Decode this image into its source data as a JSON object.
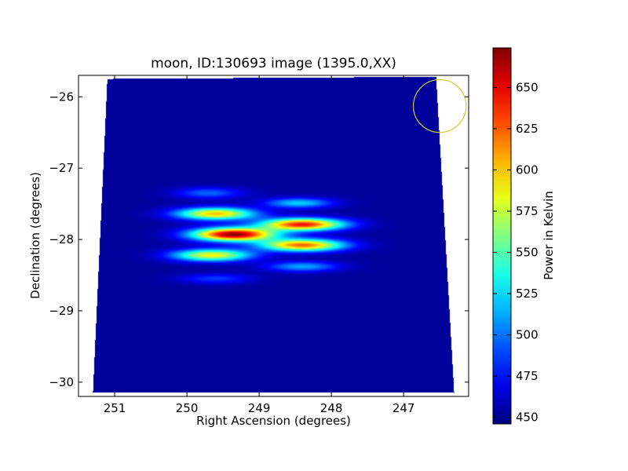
{
  "chart_data": {
    "type": "heatmap",
    "title": "moon, ID:130693 image (1395.0,XX)",
    "xlabel": "Right Ascension (degrees)",
    "ylabel": "Declination (degrees)",
    "xlim": [
      251.5,
      246.1
    ],
    "ylim": [
      -30.2,
      -25.7
    ],
    "x_ticks": [
      251,
      250,
      249,
      248,
      247
    ],
    "x_tick_labels": [
      "251",
      "250",
      "249",
      "248",
      "247"
    ],
    "y_ticks": [
      -26,
      -27,
      -28,
      -29,
      -30
    ],
    "y_tick_labels": [
      "−26",
      "−27",
      "−28",
      "−29",
      "−30"
    ],
    "colorbar": {
      "label": "Power in Kelvin",
      "range": [
        446,
        674
      ],
      "ticks": [
        450,
        475,
        500,
        525,
        550,
        575,
        600,
        625,
        650
      ],
      "tick_labels": [
        "450",
        "475",
        "500",
        "525",
        "550",
        "575",
        "600",
        "625",
        "650"
      ],
      "colormap": "jet"
    },
    "background_value": 452,
    "beam_circle": {
      "ra": 246.5,
      "dec": -26.13,
      "radius_deg": 0.37,
      "color": "#cccc33"
    },
    "blobs": [
      {
        "ra": 249.7,
        "dec": -27.35,
        "amp": 45,
        "sx": 0.33,
        "sy": 0.055
      },
      {
        "ra": 249.6,
        "dec": -27.64,
        "amp": 150,
        "sx": 0.38,
        "sy": 0.06
      },
      {
        "ra": 249.35,
        "dec": -27.93,
        "amp": 220,
        "sx": 0.4,
        "sy": 0.065
      },
      {
        "ra": 249.65,
        "dec": -28.22,
        "amp": 135,
        "sx": 0.38,
        "sy": 0.06
      },
      {
        "ra": 249.6,
        "dec": -28.55,
        "amp": 35,
        "sx": 0.35,
        "sy": 0.05
      },
      {
        "ra": 248.45,
        "dec": -27.49,
        "amp": 70,
        "sx": 0.33,
        "sy": 0.05
      },
      {
        "ra": 248.4,
        "dec": -27.79,
        "amp": 190,
        "sx": 0.4,
        "sy": 0.06
      },
      {
        "ra": 248.4,
        "dec": -28.08,
        "amp": 170,
        "sx": 0.4,
        "sy": 0.06
      },
      {
        "ra": 248.4,
        "dec": -28.38,
        "amp": 60,
        "sx": 0.35,
        "sy": 0.05
      }
    ],
    "footprint_corners": {
      "top_left": [
        251.1,
        -25.75
      ],
      "top_right": [
        246.55,
        -25.72
      ],
      "bottom_right": [
        246.3,
        -30.15
      ],
      "bottom_left": [
        251.3,
        -30.15
      ]
    }
  }
}
